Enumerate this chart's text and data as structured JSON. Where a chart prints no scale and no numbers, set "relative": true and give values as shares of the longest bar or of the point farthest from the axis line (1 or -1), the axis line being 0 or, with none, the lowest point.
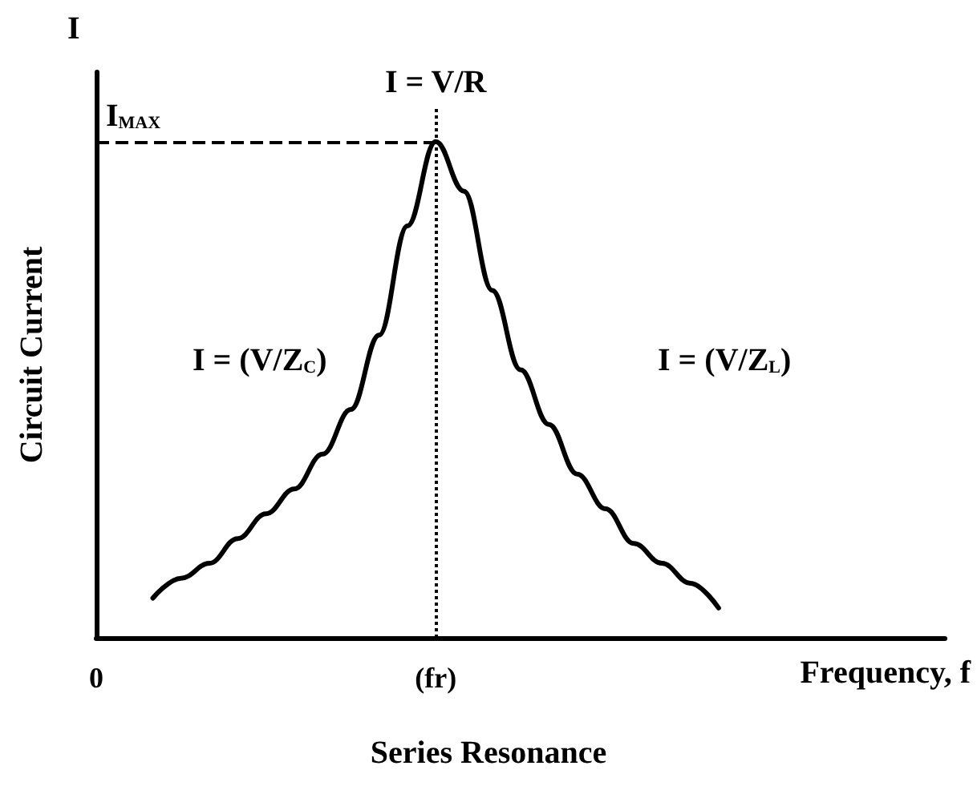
{
  "chart_data": {
    "type": "line",
    "title": "Series Resonance",
    "xlabel": "Frequency, f",
    "ylabel": "Circuit Current",
    "relative": true,
    "categories": [
      "0",
      null,
      null,
      null,
      null,
      null,
      null,
      null,
      null,
      null,
      null,
      null,
      "(fr)",
      null,
      null,
      null,
      null,
      null,
      null,
      null,
      null,
      null,
      null,
      null,
      null,
      null,
      null,
      null,
      null,
      null,
      null
    ],
    "series": [
      {
        "color": "#000000",
        "values": [
          null,
          null,
          0.08,
          0.12,
          0.15,
          0.2,
          0.25,
          0.3,
          0.37,
          0.46,
          0.61,
          0.83,
          1,
          0.9,
          0.7,
          0.54,
          0.43,
          0.33,
          0.26,
          0.19,
          0.15,
          0.11,
          0.06,
          null,
          null,
          null,
          null,
          null,
          null,
          null,
          null
        ]
      }
    ],
    "ref_lines": [
      {
        "axis": "x",
        "value": "(fr)",
        "label": "I = V/R",
        "line_style": "dotted",
        "color": "#000000"
      },
      {
        "axis": "y",
        "value": 1,
        "label": "I$_{MAX}$",
        "line_style": "dashed",
        "color": "#000000"
      }
    ],
    "annotations": [
      "I",
      "I = (V/Z$_{C}$)",
      "I = (V/Z$_{L}$)"
    ],
    "marker": "none",
    "line_style": "solid",
    "grid": false
  }
}
